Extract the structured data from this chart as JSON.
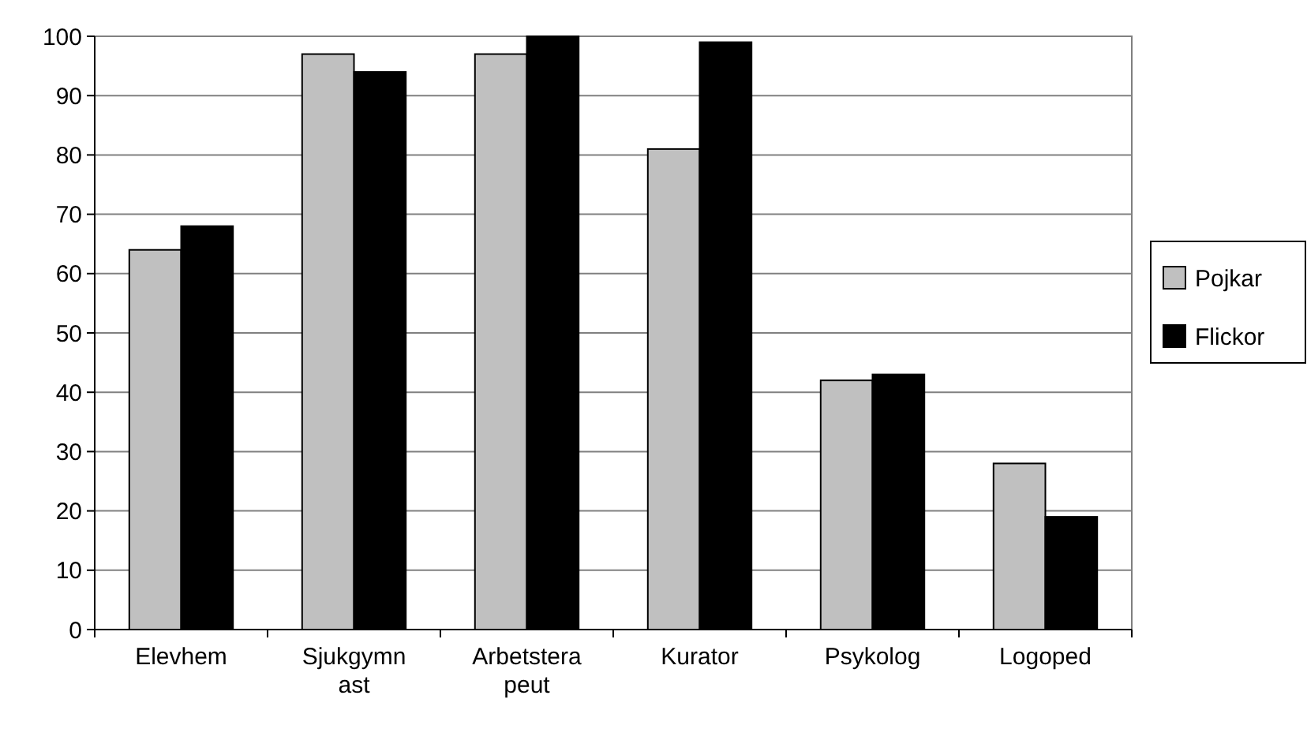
{
  "chart_data": {
    "type": "bar",
    "categories": [
      "Elevhem",
      "Sjukgymnast",
      "Arbetsterapeut",
      "Kurator",
      "Psykolog",
      "Logoped"
    ],
    "series": [
      {
        "name": "Pojkar",
        "color": "#c0c0c0",
        "values": [
          64,
          97,
          97,
          81,
          42,
          28
        ]
      },
      {
        "name": "Flickor",
        "color": "#000000",
        "values": [
          68,
          94,
          100,
          99,
          43,
          19
        ]
      }
    ],
    "ylim": [
      0,
      100
    ],
    "yticks": [
      0,
      10,
      20,
      30,
      40,
      50,
      60,
      70,
      80,
      90,
      100
    ],
    "grid": "y",
    "legend": "right"
  }
}
